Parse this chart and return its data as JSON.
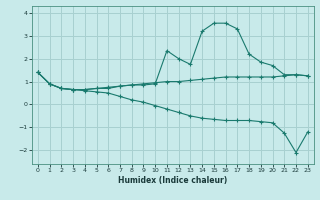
{
  "xlabel": "Humidex (Indice chaleur)",
  "bg_color": "#c8eaea",
  "grid_color": "#a8d0d0",
  "line_color": "#1a7a6e",
  "spine_color": "#4a9080",
  "xlim": [
    -0.5,
    23.5
  ],
  "ylim": [
    -2.6,
    4.3
  ],
  "yticks": [
    -2,
    -1,
    0,
    1,
    2,
    3,
    4
  ],
  "xticks": [
    0,
    1,
    2,
    3,
    4,
    5,
    6,
    7,
    8,
    9,
    10,
    11,
    12,
    13,
    14,
    15,
    16,
    17,
    18,
    19,
    20,
    21,
    22,
    23
  ],
  "line1_x": [
    0,
    1,
    2,
    3,
    4,
    5,
    6,
    7,
    8,
    9,
    10,
    11,
    12,
    13,
    14,
    15,
    16,
    17,
    18,
    19,
    20,
    21,
    22,
    23
  ],
  "line1_y": [
    1.4,
    0.9,
    0.7,
    0.65,
    0.65,
    0.7,
    0.7,
    0.8,
    0.85,
    0.85,
    0.9,
    2.35,
    2.0,
    1.75,
    3.2,
    3.55,
    3.55,
    3.3,
    2.2,
    1.85,
    1.7,
    1.3,
    1.3,
    1.25
  ],
  "line2_x": [
    0,
    1,
    2,
    3,
    4,
    5,
    6,
    7,
    8,
    9,
    10,
    11,
    12,
    13,
    14,
    15,
    16,
    17,
    18,
    19,
    20,
    21,
    22,
    23
  ],
  "line2_y": [
    1.4,
    0.9,
    0.7,
    0.65,
    0.65,
    0.7,
    0.75,
    0.8,
    0.85,
    0.9,
    0.95,
    1.0,
    1.0,
    1.05,
    1.1,
    1.15,
    1.2,
    1.2,
    1.2,
    1.2,
    1.2,
    1.25,
    1.3,
    1.25
  ],
  "line3_x": [
    0,
    1,
    2,
    3,
    4,
    5,
    6,
    7,
    8,
    9,
    10,
    11,
    12,
    13,
    14,
    15,
    16,
    17,
    18,
    19,
    20,
    21,
    22,
    23
  ],
  "line3_y": [
    1.4,
    0.9,
    0.7,
    0.65,
    0.6,
    0.55,
    0.5,
    0.35,
    0.2,
    0.1,
    -0.05,
    -0.2,
    -0.35,
    -0.5,
    -0.6,
    -0.65,
    -0.7,
    -0.7,
    -0.7,
    -0.75,
    -0.8,
    -1.25,
    -2.1,
    -1.2
  ]
}
